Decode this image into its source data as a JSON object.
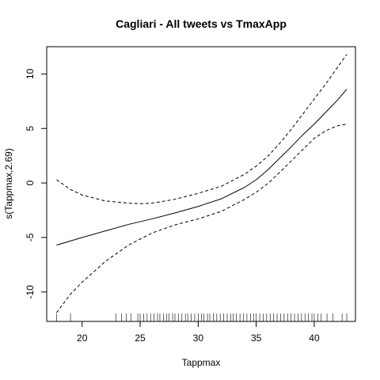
{
  "chart_data": {
    "type": "line",
    "title": "Cagliari - All tweets vs TmaxApp",
    "xlabel": "Tappmax",
    "ylabel": "s(Tappmax,2.69)",
    "xlim": [
      16.95,
      43.55
    ],
    "ylim": [
      -12.7,
      12.5
    ],
    "x_ticks": [
      20,
      25,
      30,
      35,
      40
    ],
    "y_ticks": [
      -10,
      -5,
      0,
      5,
      10
    ],
    "grid": false,
    "legend": "none",
    "line_color": "#000000",
    "series": [
      {
        "style": "solid",
        "x": [
          17.8,
          20,
          22,
          24,
          26,
          28,
          30,
          32,
          34,
          35,
          36,
          37,
          38,
          39,
          40,
          41,
          42,
          42.8
        ],
        "y": [
          -5.7,
          -5.0,
          -4.4,
          -3.8,
          -3.3,
          -2.75,
          -2.15,
          -1.45,
          -0.4,
          0.3,
          1.2,
          2.25,
          3.3,
          4.4,
          5.4,
          6.5,
          7.6,
          8.6
        ]
      },
      {
        "style": "dashed",
        "x": [
          17.8,
          19,
          20,
          22,
          24,
          25,
          26,
          28,
          30,
          32,
          34,
          35,
          36,
          37,
          38,
          39,
          40,
          41,
          42,
          42.8
        ],
        "y": [
          0.3,
          -0.6,
          -1.1,
          -1.65,
          -1.85,
          -1.9,
          -1.85,
          -1.5,
          -0.95,
          -0.3,
          0.8,
          1.55,
          2.45,
          3.6,
          4.9,
          6.3,
          7.7,
          9.1,
          10.6,
          11.8
        ]
      },
      {
        "style": "dashed",
        "x": [
          17.8,
          19,
          20,
          22,
          24,
          26,
          28,
          30,
          32,
          34,
          35,
          36,
          37,
          38,
          39,
          40,
          41,
          42,
          42.8
        ],
        "y": [
          -11.9,
          -10.2,
          -9.1,
          -7.2,
          -5.7,
          -4.6,
          -3.85,
          -3.3,
          -2.6,
          -1.5,
          -0.85,
          -0.05,
          0.95,
          2.0,
          3.05,
          4.1,
          4.8,
          5.25,
          5.4
        ]
      }
    ],
    "rug": [
      17.8,
      19.0,
      22.9,
      23.4,
      23.8,
      24.2,
      24.8,
      25.0,
      25.3,
      25.6,
      25.9,
      26.2,
      26.5,
      26.7,
      27.0,
      27.3,
      27.5,
      27.8,
      28.0,
      28.3,
      28.6,
      28.9,
      29.1,
      29.4,
      29.7,
      30.0,
      30.3,
      30.5,
      30.8,
      31.0,
      31.3,
      31.6,
      31.9,
      32.2,
      32.5,
      32.8,
      33.0,
      33.3,
      33.6,
      33.9,
      34.2,
      34.5,
      34.8,
      35.0,
      35.3,
      35.6,
      35.9,
      36.2,
      36.5,
      36.8,
      37.1,
      37.4,
      37.7,
      38.0,
      38.3,
      38.6,
      38.9,
      39.2,
      39.5,
      39.8,
      40.0,
      40.3,
      40.6,
      41.1,
      41.6,
      42.4,
      42.8
    ]
  }
}
